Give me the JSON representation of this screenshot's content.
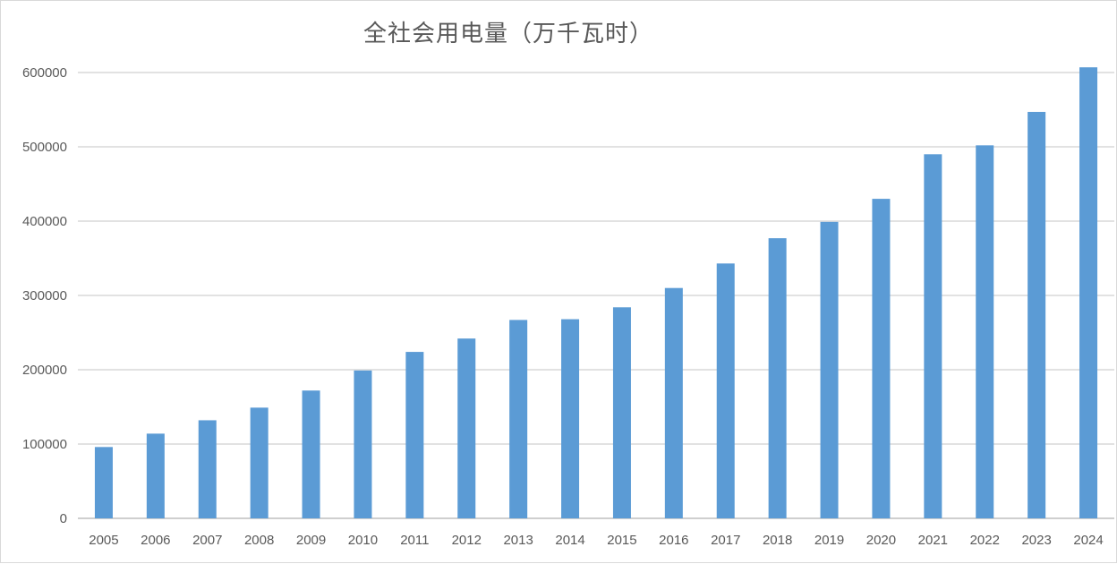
{
  "chart_data": {
    "type": "bar",
    "title": "全社会用电量（万千瓦时）",
    "xlabel": "",
    "ylabel": "",
    "ylim": [
      0,
      600000
    ],
    "yticks": [
      0,
      100000,
      200000,
      300000,
      400000,
      500000,
      600000
    ],
    "grid": true,
    "legend": "none",
    "colors": {
      "bar": "#5b9bd5",
      "grid": "#d9d9d9",
      "axis": "#bfbfbf",
      "text": "#595959"
    },
    "categories": [
      "2005",
      "2006",
      "2007",
      "2008",
      "2009",
      "2010",
      "2011",
      "2012",
      "2013",
      "2014",
      "2015",
      "2016",
      "2017",
      "2018",
      "2019",
      "2020",
      "2021",
      "2022",
      "2023",
      "2024"
    ],
    "values": [
      96000,
      114000,
      132000,
      149000,
      172000,
      199000,
      224000,
      242000,
      267000,
      268000,
      284000,
      310000,
      343000,
      377000,
      399000,
      430000,
      490000,
      502000,
      547000,
      607000
    ]
  }
}
